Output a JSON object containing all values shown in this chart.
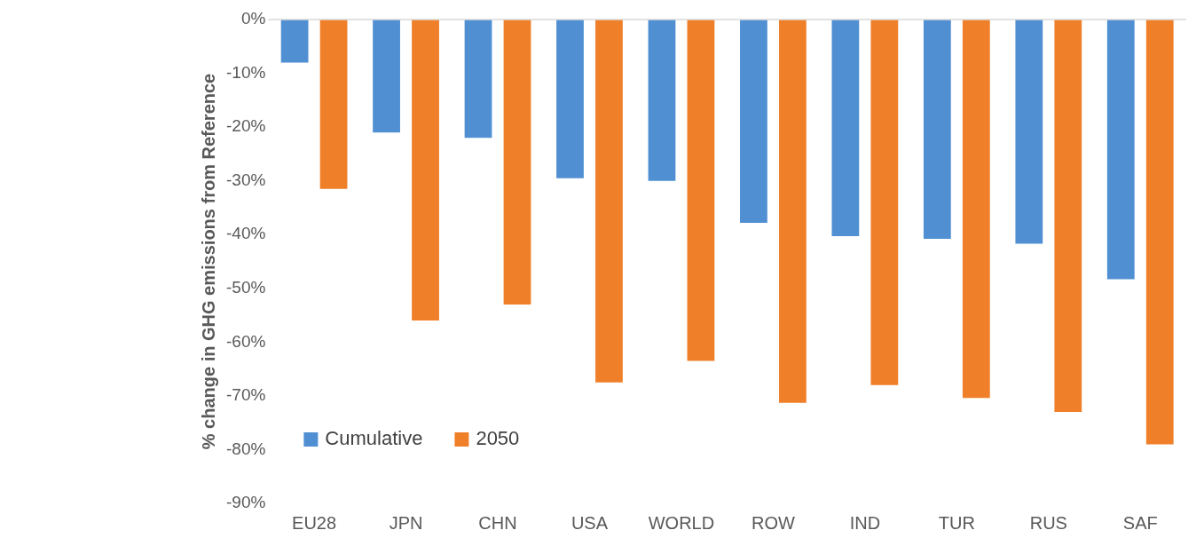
{
  "chart_data": {
    "type": "bar",
    "ylabel": "% change in GHG emissions from Reference",
    "categories": [
      "EU28",
      "JPN",
      "CHN",
      "USA",
      "WORLD",
      "ROW",
      "IND",
      "TUR",
      "RUS",
      "SAF"
    ],
    "series": [
      {
        "name": "Cumulative",
        "color": "#4f8fd2",
        "values": [
          -8,
          -21,
          -22,
          -29.5,
          -30,
          -37.8,
          -40.3,
          -40.8,
          -41.7,
          -48.3
        ]
      },
      {
        "name": "2050",
        "color": "#f07f2a",
        "values": [
          -31.5,
          -56,
          -53,
          -67.5,
          -63.5,
          -71.3,
          -68,
          -70.4,
          -73,
          -79
        ]
      }
    ],
    "ylim": [
      -90,
      0
    ],
    "yticks": [
      {
        "value": 0,
        "label": "0%"
      },
      {
        "value": -10,
        "label": "-10%"
      },
      {
        "value": -20,
        "label": "-20%"
      },
      {
        "value": -30,
        "label": "-30%"
      },
      {
        "value": -40,
        "label": "-40%"
      },
      {
        "value": -50,
        "label": "-50%"
      },
      {
        "value": -60,
        "label": "-60%"
      },
      {
        "value": -70,
        "label": "-70%"
      },
      {
        "value": -80,
        "label": "-80%"
      },
      {
        "value": -90,
        "label": "-90%"
      }
    ],
    "grid": false,
    "legend": "bottom left"
  }
}
